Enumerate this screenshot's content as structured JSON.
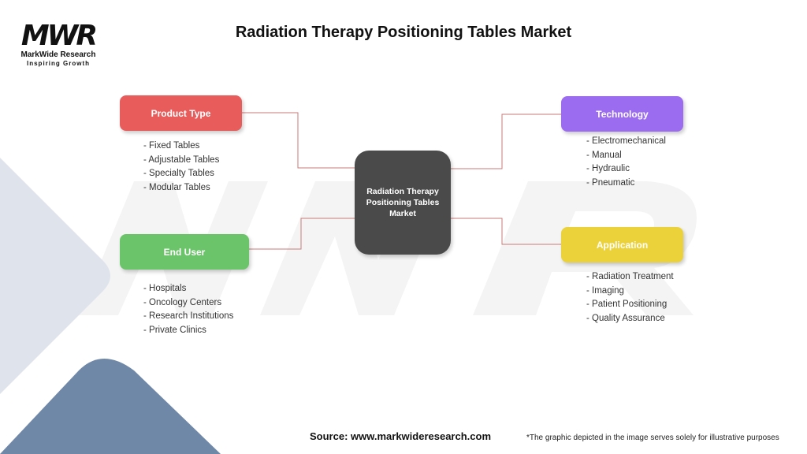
{
  "logo": {
    "mark": "MWR",
    "name": "MarkWide Research",
    "tagline": "Inspiring Growth"
  },
  "title": "Radiation Therapy Positioning Tables Market",
  "center": "Radiation Therapy Positioning Tables Market",
  "categories": [
    {
      "label": "Product Type",
      "color": "#e85c5c",
      "items": [
        "- Fixed Tables",
        "- Adjustable Tables",
        "- Specialty Tables",
        "- Modular Tables"
      ]
    },
    {
      "label": "End User",
      "color": "#6cc46a",
      "items": [
        "- Hospitals",
        "- Oncology Centers",
        "- Research Institutions",
        "- Private Clinics"
      ]
    },
    {
      "label": "Technology",
      "color": "#9b6cf0",
      "items": [
        "- Electromechanical",
        "- Manual",
        "- Hydraulic",
        "- Pneumatic"
      ]
    },
    {
      "label": "Application",
      "color": "#ecd23a",
      "items": [
        "- Radiation Treatment",
        "- Imaging",
        "- Patient Positioning",
        "- Quality Assurance"
      ]
    }
  ],
  "connector_color": "#c97a7a",
  "source": "Source: www.markwideresearch.com",
  "note": "*The graphic depicted in the image serves solely for illustrative purposes"
}
